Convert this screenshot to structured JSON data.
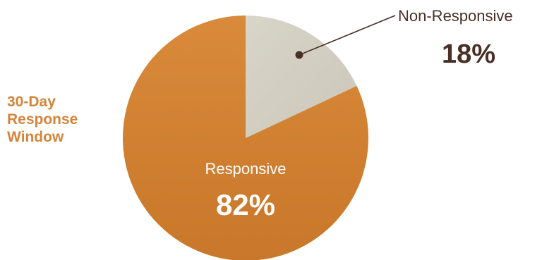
{
  "side_title": {
    "lines": [
      "30-Day",
      "Response",
      "Window"
    ]
  },
  "colors": {
    "responsive": "#d07f30",
    "non_responsive": "#d3d0c3",
    "callout_line": "#4a2f24",
    "callout_text": "#4a2f24",
    "inside_text": "#ffffff",
    "side_title": "#d4843a"
  },
  "chart_data": {
    "type": "pie",
    "title": "30-Day Response Window",
    "slices": [
      {
        "label": "Non-Responsive",
        "value": 18,
        "value_label": "18%",
        "color": "#d3d0c3"
      },
      {
        "label": "Responsive",
        "value": 82,
        "value_label": "82%",
        "color": "#d07f30"
      }
    ]
  }
}
